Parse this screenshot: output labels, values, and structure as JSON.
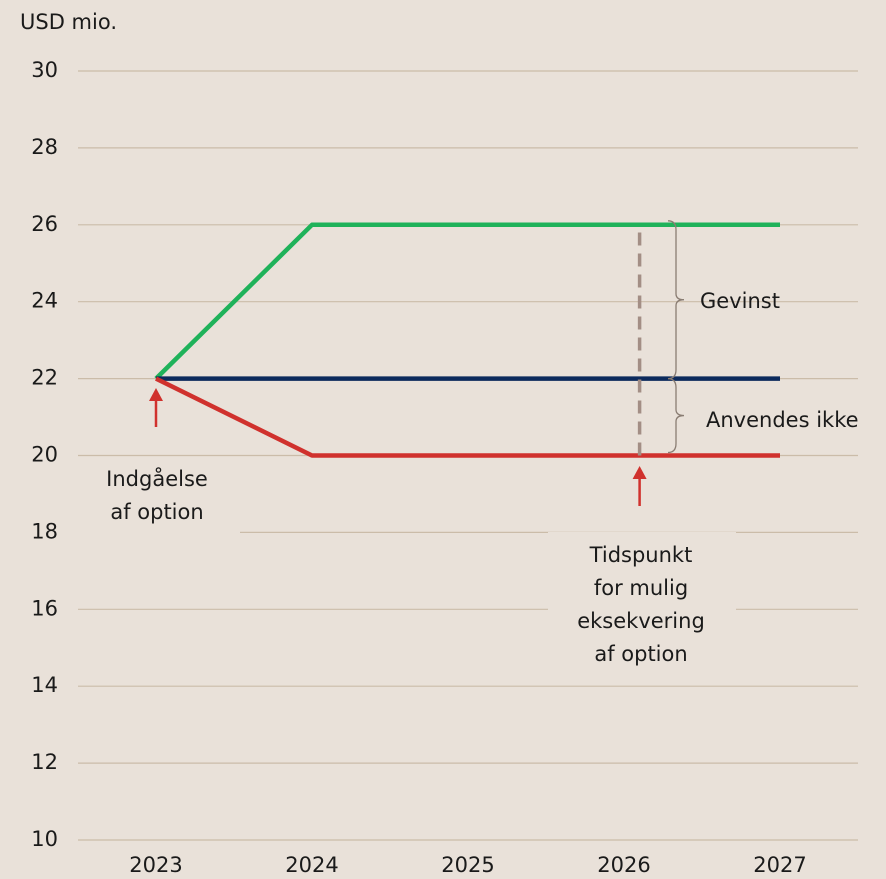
{
  "chart_data": {
    "type": "line",
    "ylabel": "USD mio.",
    "x": [
      2023,
      2024,
      2025,
      2026,
      2027
    ],
    "xlim": [
      2022.5,
      2027.5
    ],
    "xticks": [
      2023,
      2024,
      2025,
      2026,
      2027
    ],
    "ylim": [
      10,
      30
    ],
    "yticks": [
      10,
      12,
      14,
      16,
      18,
      20,
      22,
      24,
      26,
      28,
      30
    ],
    "grid": true,
    "series": [
      {
        "color": "#1fb25a",
        "values": [
          22,
          26,
          26,
          26,
          26
        ]
      },
      {
        "color": "#0c2a5c",
        "values": [
          22,
          22,
          22,
          22,
          22
        ]
      },
      {
        "color": "#d0312d",
        "values": [
          22,
          20,
          20,
          20,
          20
        ]
      }
    ],
    "exercise_line": {
      "x": 2026.1,
      "from": 20,
      "to": 26,
      "color": "#a38e85"
    },
    "annotations": [
      {
        "lines": [
          "Indgåelse",
          "af option"
        ]
      },
      {
        "lines": [
          "Tidspunkt",
          "for mulig",
          "eksekvering",
          "af option"
        ]
      },
      {
        "lines": [
          "Gevinst"
        ]
      },
      {
        "lines": [
          "Anvendes ikke"
        ]
      }
    ]
  }
}
